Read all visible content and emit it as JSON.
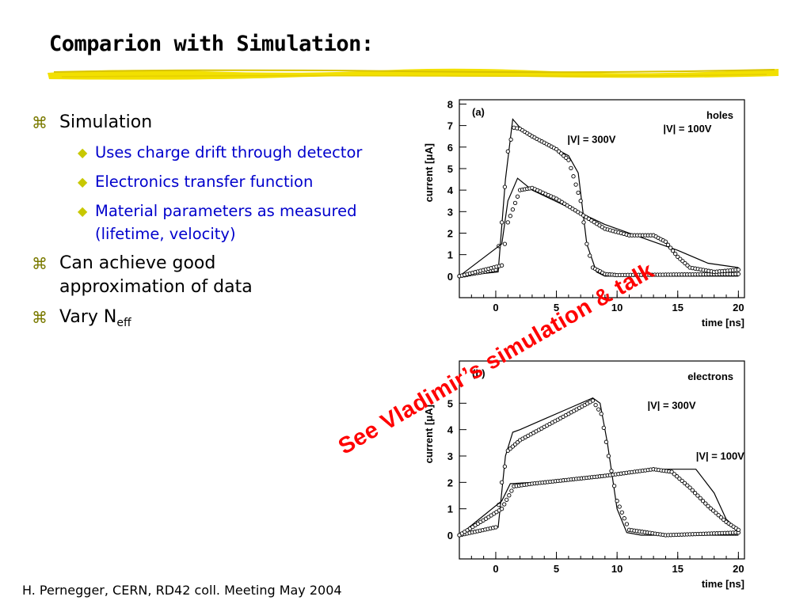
{
  "slide": {
    "title": "Comparion with Simulation:",
    "footer": "H. Pernegger, CERN, RD42 coll. Meeting May 2004",
    "overlay_text": "See Vladimir’s simulation & talk",
    "bullet_glyph": "⌘",
    "sub_glyph": "◆"
  },
  "bullets": [
    {
      "text": "Simulation",
      "children": [
        "Uses charge drift through detector",
        "Electronics transfer function",
        "Material parameters as measured (lifetime, velocity)"
      ]
    },
    {
      "text": "Can achieve good approximation of data"
    },
    {
      "text": "Vary N",
      "subscript": "eff"
    }
  ],
  "colors": {
    "accent_underline": "#f2e000",
    "sub_bullet_text": "#0000cc",
    "overlay": "#ff0000"
  },
  "chart_data": [
    {
      "type": "scatter",
      "panel_label": "(a)",
      "corner_label": "holes",
      "xlabel": "time [ns]",
      "ylabel": "current [μA]",
      "xlim": [
        -3,
        20.5
      ],
      "ylim": [
        -1,
        8.2
      ],
      "xticks": [
        0,
        5,
        10,
        15,
        20
      ],
      "yticks": [
        0,
        1,
        2,
        3,
        4,
        5,
        6,
        7,
        8
      ],
      "series": [
        {
          "name": "|V| = 300V",
          "measured": [
            [
              -3,
              0
            ],
            [
              0,
              0.3
            ],
            [
              0.5,
              2.5
            ],
            [
              1.0,
              5.8
            ],
            [
              1.5,
              6.9
            ],
            [
              2,
              6.85
            ],
            [
              3,
              6.5
            ],
            [
              4,
              6.2
            ],
            [
              5,
              5.9
            ],
            [
              6,
              5.4
            ],
            [
              7,
              3.5
            ],
            [
              7.5,
              1.5
            ],
            [
              8,
              0.4
            ],
            [
              9,
              0.1
            ],
            [
              10,
              0.05
            ],
            [
              20,
              0.1
            ]
          ],
          "simulation": [
            [
              -3,
              0
            ],
            [
              0.2,
              0.2
            ],
            [
              0.8,
              4.5
            ],
            [
              1.4,
              7.3
            ],
            [
              2,
              6.9
            ],
            [
              4,
              6.2
            ],
            [
              6,
              5.6
            ],
            [
              6.8,
              4.8
            ],
            [
              7.5,
              1.5
            ],
            [
              8.3,
              0.2
            ],
            [
              9,
              0
            ],
            [
              20,
              0
            ]
          ]
        },
        {
          "name": "|V| = 100V",
          "measured": [
            [
              -3,
              0
            ],
            [
              0.5,
              0.5
            ],
            [
              1,
              2.5
            ],
            [
              2,
              4
            ],
            [
              3,
              4.1
            ],
            [
              5,
              3.6
            ],
            [
              7,
              2.9
            ],
            [
              9,
              2.2
            ],
            [
              11,
              1.9
            ],
            [
              13,
              1.9
            ],
            [
              14,
              1.6
            ],
            [
              15,
              0.9
            ],
            [
              16,
              0.4
            ],
            [
              18,
              0.2
            ],
            [
              20,
              0.3
            ]
          ],
          "simulation": [
            [
              -3,
              0
            ],
            [
              0.5,
              1.5
            ],
            [
              1,
              3.5
            ],
            [
              1.8,
              4.55
            ],
            [
              3,
              4
            ],
            [
              6,
              3.2
            ],
            [
              9,
              2.4
            ],
            [
              12,
              1.8
            ],
            [
              15,
              1.2
            ],
            [
              17.5,
              0.6
            ],
            [
              20,
              0.4
            ]
          ]
        }
      ]
    },
    {
      "type": "scatter",
      "panel_label": "(b)",
      "corner_label": "electrons",
      "xlabel": "time [ns]",
      "ylabel": "current [μA]",
      "xlim": [
        -3,
        20.5
      ],
      "ylim": [
        -0.9,
        6.6
      ],
      "xticks": [
        0,
        5,
        10,
        15,
        20
      ],
      "yticks": [
        0,
        1,
        2,
        3,
        4,
        5
      ],
      "series": [
        {
          "name": "|V| = 300V",
          "measured": [
            [
              -3,
              0
            ],
            [
              0,
              0.3
            ],
            [
              0.5,
              2
            ],
            [
              1,
              3.2
            ],
            [
              2,
              3.6
            ],
            [
              4,
              4.1
            ],
            [
              6,
              4.6
            ],
            [
              8,
              5.1
            ],
            [
              8.7,
              4.6
            ],
            [
              9.3,
              3
            ],
            [
              10,
              1.3
            ],
            [
              11,
              0.2
            ],
            [
              14,
              0
            ],
            [
              20,
              0.1
            ]
          ],
          "simulation": [
            [
              -3,
              0
            ],
            [
              0.2,
              0.3
            ],
            [
              0.8,
              3
            ],
            [
              1.4,
              3.9
            ],
            [
              2,
              4.0
            ],
            [
              4,
              4.4
            ],
            [
              6,
              4.8
            ],
            [
              8,
              5.2
            ],
            [
              8.6,
              5
            ],
            [
              9.2,
              3.5
            ],
            [
              10,
              1
            ],
            [
              10.8,
              0.1
            ],
            [
              12,
              0
            ],
            [
              20,
              0
            ]
          ]
        },
        {
          "name": "|V| = 100V",
          "measured": [
            [
              -3,
              0
            ],
            [
              0.5,
              1
            ],
            [
              1.5,
              1.85
            ],
            [
              3,
              1.95
            ],
            [
              6,
              2.1
            ],
            [
              9,
              2.25
            ],
            [
              13,
              2.5
            ],
            [
              14.5,
              2.4
            ],
            [
              16,
              1.8
            ],
            [
              17.5,
              1.1
            ],
            [
              19,
              0.5
            ],
            [
              20,
              0.2
            ]
          ],
          "simulation": [
            [
              -3,
              0
            ],
            [
              0.5,
              1.3
            ],
            [
              1.2,
              1.95
            ],
            [
              3,
              2.0
            ],
            [
              6,
              2.1
            ],
            [
              9,
              2.3
            ],
            [
              13,
              2.5
            ],
            [
              16.5,
              2.5
            ],
            [
              18,
              1.6
            ],
            [
              19,
              0.6
            ],
            [
              20,
              0.2
            ]
          ]
        }
      ]
    }
  ]
}
